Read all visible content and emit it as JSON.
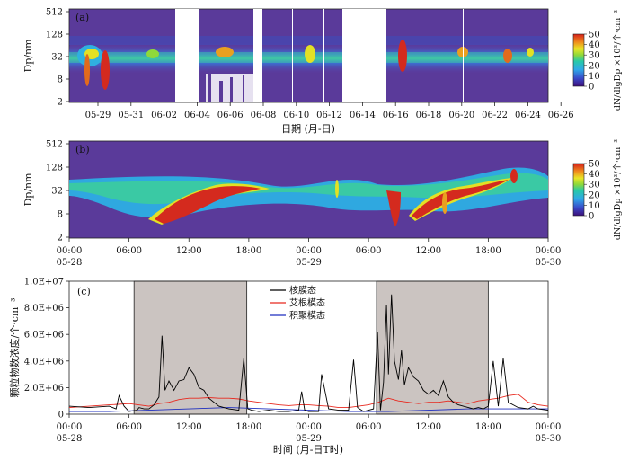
{
  "chart_data": [
    {
      "id": "a",
      "type": "heatmap",
      "panel_label": "(a)",
      "ylabel": "Dp/nm",
      "xlabel": "日期 (月-日)",
      "x_range": [
        "05-28",
        "06-28"
      ],
      "yticks": [
        "2",
        "8",
        "32",
        "128",
        "512"
      ],
      "xticks": [
        "05-29",
        "05-31",
        "06-02",
        "06-04",
        "06-06",
        "06-08",
        "06-10",
        "06-12",
        "06-14",
        "06-16",
        "06-18",
        "06-20",
        "06-22",
        "06-24",
        "06-26"
      ],
      "missing_periods": [
        [
          "06-02.8",
          "06-04.5"
        ],
        [
          "06-08.2",
          "06-08.9"
        ],
        [
          "06-13.0",
          "06-16.0"
        ]
      ],
      "colorbar": {
        "label": "dN/dlgDp ×10³/个·cm⁻³",
        "ticks": [
          "0",
          "10",
          "20",
          "30",
          "40",
          "50"
        ],
        "range": [
          0,
          50
        ]
      }
    },
    {
      "id": "b",
      "type": "heatmap",
      "panel_label": "(b)",
      "ylabel": "Dp/nm",
      "yticks": [
        "2",
        "8",
        "32",
        "128",
        "512"
      ],
      "xticks": [
        "00:00",
        "06:00",
        "12:00",
        "18:00",
        "00:00",
        "06:00",
        "12:00",
        "18:00",
        "00:00"
      ],
      "xdates": [
        "05-28",
        "05-29",
        "05-30"
      ],
      "colorbar": {
        "label": "dN/dlgDp ×10³/个·cm⁻³",
        "ticks": [
          "0",
          "10",
          "20",
          "30",
          "40",
          "50"
        ],
        "range": [
          0,
          50
        ]
      }
    },
    {
      "id": "c",
      "type": "line",
      "panel_label": "(c)",
      "ylabel": "颗粒物数浓度/个·cm⁻³",
      "xlabel": "时间 (月-日T时)",
      "xticks": [
        "00:00",
        "06:00",
        "12:00",
        "18:00",
        "00:00",
        "06:00",
        "12:00",
        "18:00",
        "00:00"
      ],
      "xdates": [
        "05-28",
        "05-29",
        "05-30"
      ],
      "yticks": [
        "0",
        "2.0E+06",
        "4.0E+06",
        "6.0E+06",
        "8.0E+06",
        "1.0E+07"
      ],
      "ylim": [
        0,
        10000000
      ],
      "x_range_hours": [
        0,
        48
      ],
      "shaded_hours": [
        [
          6.5,
          17.8
        ],
        [
          30.8,
          42
        ]
      ],
      "series": [
        {
          "name": "核膜态",
          "color": "#000000",
          "x": [
            0,
            2,
            4,
            4.7,
            5,
            5.5,
            6,
            6.8,
            7,
            7.5,
            8,
            8.5,
            9,
            9.3,
            9.6,
            10,
            10.5,
            11,
            11.5,
            12,
            12.5,
            13,
            13.5,
            14,
            15,
            16,
            17,
            17.5,
            17.9,
            18.3,
            19,
            20,
            21,
            22,
            23,
            23.3,
            23.6,
            24,
            25,
            25.3,
            26,
            27,
            28,
            28.5,
            28.9,
            29.5,
            30,
            30.5,
            30.9,
            31.2,
            31.5,
            31.8,
            32,
            32.3,
            32.6,
            33,
            33.3,
            33.6,
            34,
            34.5,
            35,
            35.5,
            36,
            36.5,
            37,
            37.5,
            38,
            38.5,
            39,
            39.5,
            40,
            40.5,
            41,
            41.5,
            42,
            42.5,
            43,
            43.5,
            44,
            44.5,
            45,
            46,
            46.5,
            47,
            48
          ],
          "y": [
            600000,
            500000,
            600000,
            400000,
            1400000,
            600000,
            200000,
            300000,
            500000,
            400000,
            400000,
            700000,
            1300000,
            5900000,
            1800000,
            2500000,
            1800000,
            2500000,
            2600000,
            3500000,
            3000000,
            2000000,
            1800000,
            1200000,
            600000,
            400000,
            300000,
            4200000,
            400000,
            300000,
            200000,
            300000,
            200000,
            200000,
            300000,
            1700000,
            300000,
            200000,
            200000,
            3000000,
            400000,
            300000,
            300000,
            4100000,
            500000,
            200000,
            300000,
            400000,
            6200000,
            300000,
            2400000,
            8200000,
            3000000,
            9000000,
            4000000,
            2600000,
            4800000,
            2200000,
            3500000,
            2800000,
            2500000,
            1800000,
            1500000,
            1800000,
            1400000,
            2500000,
            1300000,
            900000,
            700000,
            600000,
            500000,
            400000,
            500000,
            400000,
            600000,
            4000000,
            600000,
            4200000,
            900000,
            700000,
            500000,
            400000,
            600000,
            400000,
            300000
          ]
        },
        {
          "name": "艾根模态",
          "color": "#e8281e",
          "x": [
            0,
            2,
            4,
            6,
            8,
            9,
            10,
            11,
            12,
            13,
            14,
            15,
            16,
            17,
            18,
            19,
            20,
            21,
            22,
            23,
            24,
            25,
            26,
            27,
            28,
            29,
            30,
            31,
            32,
            33,
            34,
            35,
            36,
            37,
            38,
            39,
            40,
            41,
            42,
            43,
            44,
            45,
            46,
            47,
            48
          ],
          "y": [
            500000,
            600000,
            700000,
            800000,
            600000,
            800000,
            900000,
            1100000,
            1200000,
            1200000,
            1250000,
            1200000,
            1200000,
            1150000,
            1000000,
            900000,
            800000,
            700000,
            650000,
            700000,
            700000,
            650000,
            600000,
            500000,
            500000,
            600000,
            700000,
            900000,
            1200000,
            1000000,
            900000,
            800000,
            900000,
            900000,
            1000000,
            900000,
            800000,
            1000000,
            1100000,
            1200000,
            1400000,
            1500000,
            900000,
            700000,
            600000
          ]
        },
        {
          "name": "积聚模态",
          "color": "#1f2fbf",
          "x": [
            0,
            4,
            8,
            12,
            16,
            20,
            24,
            28,
            32,
            36,
            40,
            44,
            48
          ],
          "y": [
            200000,
            200000,
            300000,
            400000,
            500000,
            400000,
            300000,
            200000,
            200000,
            300000,
            400000,
            400000,
            400000
          ]
        }
      ]
    }
  ]
}
